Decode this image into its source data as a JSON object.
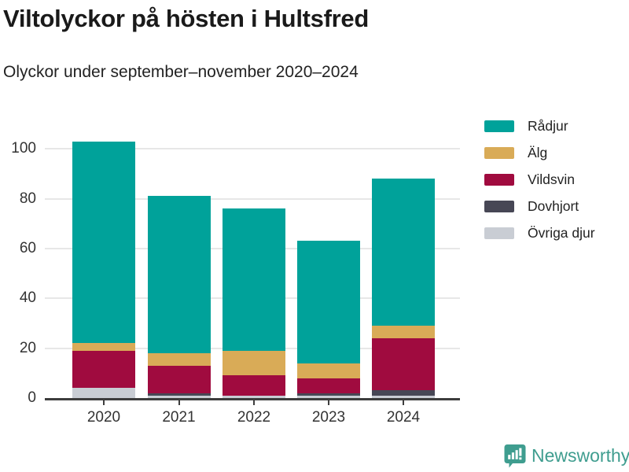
{
  "header": {
    "title": "Viltolyckor på hösten i Hultsfred",
    "subtitle": "Olyckor under september–november 2020–2024"
  },
  "footer": {
    "brand_name": "Newsworthy",
    "brand_color": "#3f9d8f"
  },
  "colors": {
    "axis": "#3d3d3d",
    "grid": "#e7e7e7",
    "tick_label": "#333333"
  },
  "chart_data": {
    "type": "bar",
    "stacked": true,
    "title": "Viltolyckor på hösten i Hultsfred",
    "subtitle": "Olyckor under september–november 2020–2024",
    "categories": [
      "2020",
      "2021",
      "2022",
      "2023",
      "2024"
    ],
    "series": [
      {
        "name": "Rådjur",
        "color": "#00a29a",
        "values": [
          81,
          63,
          57,
          49,
          59
        ]
      },
      {
        "name": "Älg",
        "color": "#d9ab57",
        "values": [
          3,
          5,
          10,
          6,
          5
        ]
      },
      {
        "name": "Vildsvin",
        "color": "#a00b3f",
        "values": [
          15,
          11,
          8,
          6,
          21
        ]
      },
      {
        "name": "Dovhjort",
        "color": "#474755",
        "values": [
          0,
          1,
          0,
          1,
          2
        ]
      },
      {
        "name": "Övriga djur",
        "color": "#c9cdd4",
        "values": [
          4,
          1,
          1,
          1,
          1
        ]
      }
    ],
    "totals": [
      103,
      81,
      76,
      63,
      88
    ],
    "xlabel": "",
    "ylabel": "",
    "ylim": [
      0,
      110
    ],
    "yticks": [
      0,
      20,
      40,
      60,
      80,
      100
    ],
    "grid": "horizontal",
    "legend_position": "right",
    "stack_order_bottom_to_top": [
      "Övriga djur",
      "Dovhjort",
      "Vildsvin",
      "Älg",
      "Rådjur"
    ]
  }
}
